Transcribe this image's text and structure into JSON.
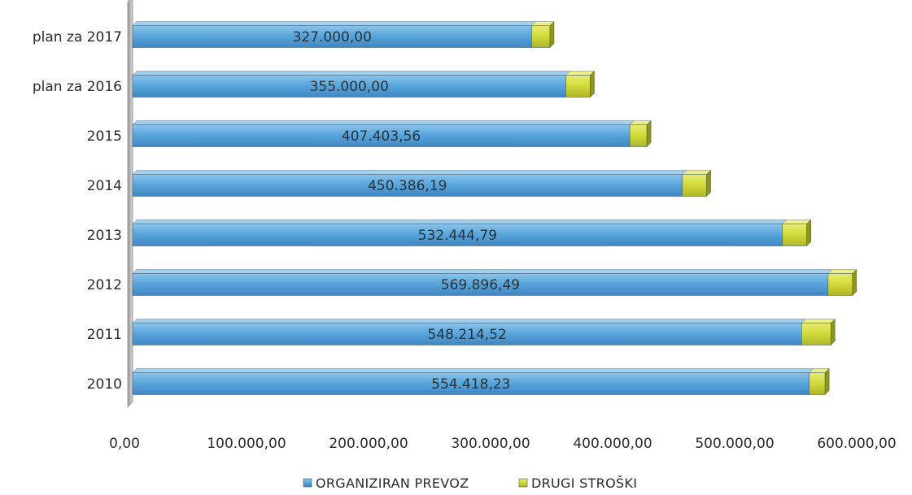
{
  "chart_data": {
    "type": "bar",
    "orientation": "horizontal",
    "stacked": true,
    "style": "3d",
    "categories": [
      "plan za 2017",
      "plan za 2016",
      "2015",
      "2014",
      "2013",
      "2012",
      "2011",
      "2010"
    ],
    "series": [
      {
        "name": "ORGANIZIRAN PREVOZ",
        "color": "#5aa6dc",
        "values": [
          327000.0,
          355000.0,
          407403.56,
          450386.19,
          532444.79,
          569896.49,
          548214.52,
          554418.23
        ],
        "labels": [
          "327.000,00",
          "355.000,00",
          "407.403,56",
          "450.386,19",
          "532.444,79",
          "569.896,49",
          "548.214,52",
          "554.418,23"
        ]
      },
      {
        "name": "DRUGI STROŠKI",
        "color": "#d3dc3c",
        "values": [
          15000,
          20000,
          14000,
          20000,
          20000,
          20000,
          24000,
          13000
        ]
      }
    ],
    "xlim": [
      0,
      600000
    ],
    "x_ticks": [
      "0,00",
      "100.000,00",
      "200.000,00",
      "300.000,00",
      "400.000,00",
      "500.000,00",
      "600.000,00"
    ],
    "grid": false,
    "legend_position": "bottom",
    "title": "",
    "xlabel": "",
    "ylabel": ""
  }
}
